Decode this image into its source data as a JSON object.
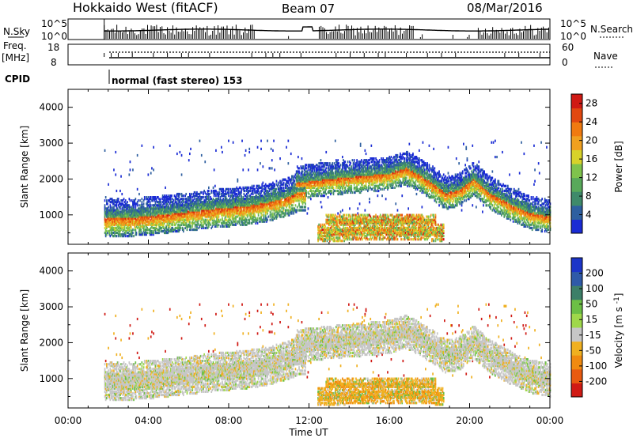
{
  "header": {
    "radar": "Hokkaido West (fitACF)",
    "beam": "Beam 07",
    "date": "08/Mar/2016"
  },
  "status_panels": {
    "nsky_label": "N.Sky",
    "nsky_ticks": [
      "10^5",
      "10^0"
    ],
    "nsearch_label": "N.Search",
    "nsearch_ticks": [
      "10^5",
      "10^0"
    ],
    "freq_label": "Freq.",
    "freq_unit": "[MHz]",
    "freq_ticks": [
      "18",
      "8"
    ],
    "nave_label": "Nave",
    "nave_ticks": [
      "60",
      "0"
    ],
    "cpid_label": "CPID",
    "cpid_text": "normal (fast stereo) 153"
  },
  "colors": {
    "power_scale": [
      "#1a2bd4",
      "#2e5fa0",
      "#3f8a6a",
      "#58a95a",
      "#7fc34c",
      "#d8d22a",
      "#f0a020",
      "#f07a10",
      "#e24810",
      "#d01a14"
    ],
    "velocity_scale": [
      "#1c35c8",
      "#2f5aa8",
      "#3d7f68",
      "#6cbf45",
      "#9fd84a",
      "#c6c6c6",
      "#f0b020",
      "#f08a10",
      "#e85a10",
      "#d01a14"
    ]
  },
  "chart_data": [
    {
      "type": "heatmap",
      "title": "Power",
      "ylabel": "Slant Range [km]",
      "xlabel": "",
      "xlim": [
        "00:00",
        "00:00"
      ],
      "ylim": [
        180,
        4500
      ],
      "y_ticks": [
        "1000",
        "2000",
        "3000",
        "4000"
      ],
      "colorbar": {
        "label": "Power [dB]",
        "ticks": [
          "4",
          "8",
          "12",
          "16",
          "20",
          "24",
          "28"
        ],
        "range": [
          0,
          30
        ]
      },
      "observation_start_hour": 1.8,
      "bands": [
        {
          "description": "near-range E/F scatter",
          "x": [
            1.8,
            3,
            4,
            5,
            6,
            7,
            8,
            9,
            10,
            11,
            11.5
          ],
          "range_km": [
            900,
            920,
            960,
            1020,
            1080,
            1150,
            1200,
            1250,
            1350,
            1500,
            1650
          ]
        },
        {
          "description": "far-range F scatter",
          "x": [
            11.5,
            13,
            14,
            15,
            16,
            16.8,
            17.5,
            18.2,
            18.8,
            19.5,
            20.2,
            21,
            22,
            23,
            24
          ],
          "range_km": [
            1900,
            2000,
            2050,
            2100,
            2150,
            2300,
            2100,
            1850,
            1600,
            1700,
            2000,
            1600,
            1300,
            1050,
            950
          ]
        },
        {
          "description": "low slant range echoes",
          "x": [
            12.5,
            14,
            15,
            16,
            17,
            18,
            18.5
          ],
          "range_km": [
            500,
            520,
            540,
            560,
            540,
            520,
            500
          ]
        }
      ]
    },
    {
      "type": "heatmap",
      "title": "Velocity",
      "ylabel": "Slant Range [km]",
      "xlabel": "Time UT",
      "x_ticks": [
        "00:00",
        "04:00",
        "08:00",
        "12:00",
        "16:00",
        "20:00",
        "00:00"
      ],
      "ylim": [
        180,
        4500
      ],
      "y_ticks": [
        "1000",
        "2000",
        "3000",
        "4000"
      ],
      "colorbar": {
        "label": "Velocity [m s^-1]",
        "ticks": [
          "200",
          "100",
          "50",
          "15",
          "-15",
          "-50",
          "-100",
          "-200"
        ],
        "range": [
          -250,
          250
        ]
      },
      "ground_scatter_color": "#c6c6c6"
    }
  ]
}
